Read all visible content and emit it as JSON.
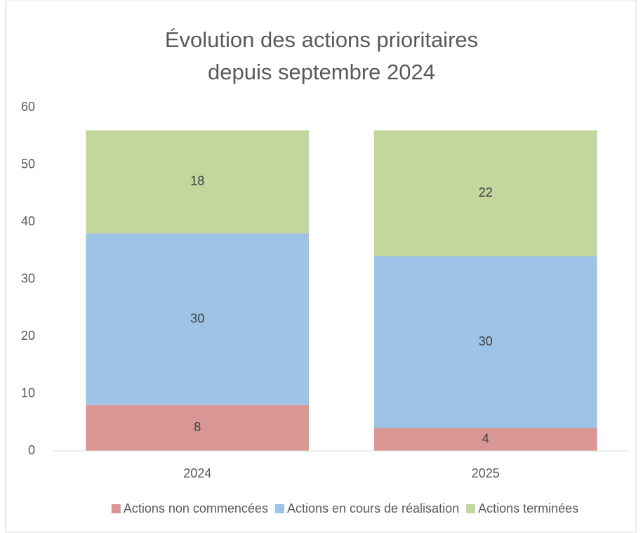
{
  "chart_data": {
    "type": "stacked_bar",
    "title": "Évolution des actions prioritaires depuis septembre 2024",
    "categories": [
      "2024",
      "2025"
    ],
    "series": [
      {
        "name": "Actions non commencées",
        "color": "#d99694",
        "values": [
          8,
          4
        ]
      },
      {
        "name": "Actions en cours de réalisation",
        "color": "#9dc3e6",
        "values": [
          30,
          30
        ]
      },
      {
        "name": "Actions terminées",
        "color": "#c3d69b",
        "values": [
          18,
          22
        ]
      }
    ],
    "ylim": [
      0,
      60
    ],
    "yticks": [
      0,
      10,
      20,
      30,
      40,
      50,
      60
    ],
    "grid": false,
    "legend": "bottom"
  }
}
